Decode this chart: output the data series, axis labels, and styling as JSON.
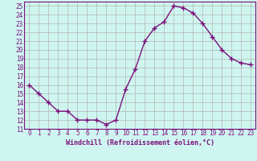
{
  "x": [
    0,
    1,
    2,
    3,
    4,
    5,
    6,
    7,
    8,
    9,
    10,
    11,
    12,
    13,
    14,
    15,
    16,
    17,
    18,
    19,
    20,
    21,
    22,
    23
  ],
  "y": [
    16,
    15,
    14,
    13,
    13,
    12,
    12,
    12,
    11.5,
    12,
    15.5,
    17.8,
    21,
    22.5,
    23.2,
    25,
    24.8,
    24.2,
    23,
    21.5,
    20,
    19,
    18.5,
    18.3
  ],
  "line_color": "#7b0f7b",
  "marker": "+",
  "marker_size": 4,
  "marker_lw": 1.0,
  "line_width": 1.0,
  "xlabel": "Windchill (Refroidissement éolien,°C)",
  "xlim": [
    -0.5,
    23.5
  ],
  "ylim": [
    11,
    25.5
  ],
  "yticks": [
    11,
    12,
    13,
    14,
    15,
    16,
    17,
    18,
    19,
    20,
    21,
    22,
    23,
    24,
    25
  ],
  "xticks": [
    0,
    1,
    2,
    3,
    4,
    5,
    6,
    7,
    8,
    9,
    10,
    11,
    12,
    13,
    14,
    15,
    16,
    17,
    18,
    19,
    20,
    21,
    22,
    23
  ],
  "bg_color": "#cff5f0",
  "grid_color": "#b0b8b0",
  "font_color": "#7b0f7b",
  "tick_fontsize": 5.5,
  "xlabel_fontsize": 6.0
}
